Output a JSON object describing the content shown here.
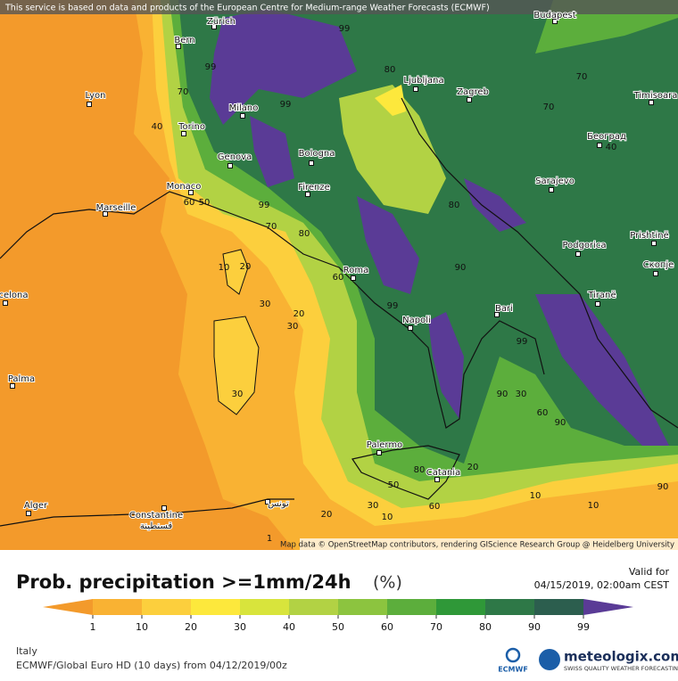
{
  "header": {
    "notice": "This service is based on data and products of the European Centre for Medium-range Weather Forecasts (ECMWF)"
  },
  "map": {
    "cities": [
      "Zürich",
      "Budapest",
      "Bern",
      "Lyon",
      "Milano",
      "Ljubljana",
      "Zagreb",
      "Timisoara",
      "Torino",
      "Београд",
      "Genova",
      "Bologna",
      "Monaco",
      "Marseille",
      "Firenze",
      "Sarajevo",
      "Podgorica",
      "Prishtinë",
      "Скопје",
      "Roma",
      "Bari",
      "celona",
      "Tiranë",
      "Napoli",
      "Palma",
      "Palermo",
      "Catania",
      "Alger",
      "Constantine",
      "قسنطينة",
      "تونس"
    ],
    "contour_labels": [
      99,
      99,
      40,
      99,
      70,
      80,
      70,
      70,
      40,
      99,
      60,
      50,
      70,
      80,
      80,
      90,
      10,
      20,
      30,
      30,
      20,
      60,
      99,
      99,
      90,
      30,
      60,
      90,
      90,
      30,
      80,
      50,
      30,
      10,
      20,
      60,
      20,
      10,
      10,
      1
    ],
    "attribution": "Map data © OpenStreetMap contributors, rendering GIScience Research Group @ Heidelberg University"
  },
  "legend": {
    "title": "Prob. precipitation >=1mm/24h",
    "unit": "(%)",
    "valid_label": "Valid for",
    "valid_time": "04/15/2019, 02:00am CEST",
    "ticks": [
      1,
      10,
      20,
      30,
      40,
      50,
      60,
      70,
      80,
      90,
      99
    ],
    "colors": [
      "#f39a2b",
      "#f9b233",
      "#fccf3d",
      "#fde83c",
      "#d8e43c",
      "#b2d244",
      "#8cc43f",
      "#5cae3c",
      "#2f9838",
      "#2e7847",
      "#2c5e4e",
      "#5a3b96"
    ]
  },
  "footer": {
    "region": "Italy",
    "model": "ECMWF/Global Euro HD (10 days) from 04/12/2019/00z",
    "brand": "meteologix.com",
    "tagline": "SWISS QUALITY WEATHER FORECASTING",
    "ecmwf": "ECMWF"
  }
}
